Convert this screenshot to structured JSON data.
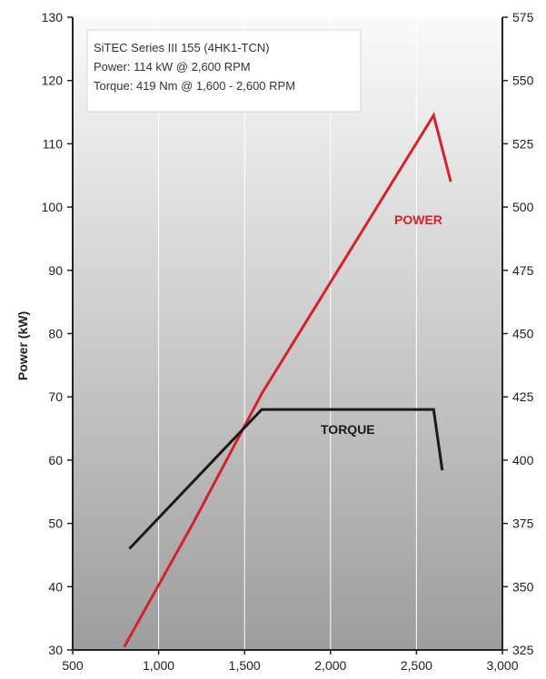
{
  "chart_data": {
    "type": "line",
    "title": "",
    "xlabel": "",
    "ylabel": "Power (kW)",
    "y2label": "",
    "xlim": [
      500,
      3000
    ],
    "ylim": [
      30,
      130
    ],
    "y2lim": [
      325,
      575
    ],
    "x_ticks": [
      "500",
      "1,000",
      "1,500",
      "2,000",
      "2,500",
      "3,000"
    ],
    "y_ticks": [
      "30",
      "40",
      "50",
      "60",
      "70",
      "80",
      "90",
      "100",
      "110",
      "120",
      "130"
    ],
    "y2_ticks": [
      "325",
      "350",
      "375",
      "400",
      "425",
      "450",
      "475",
      "500",
      "525",
      "550",
      "575"
    ],
    "grid": "vertical",
    "info_box": {
      "lines": [
        "SiTEC Series III 155 (4HK1-TCN)",
        "Power: 114 kW @ 2,600 RPM",
        "Torque: 419 Nm @ 1,600 - 2,600 RPM"
      ]
    },
    "series": [
      {
        "name": "POWER",
        "axis": "left",
        "color": "#d9202a",
        "x": [
          800,
          1200,
          1600,
          2600,
          2700
        ],
        "y": [
          30.5,
          50,
          70.5,
          114.5,
          104
        ]
      },
      {
        "name": "TORQUE",
        "axis": "right",
        "color": "#1a1a1a",
        "x": [
          830,
          1600,
          2600,
          2650
        ],
        "y": [
          365,
          420,
          420,
          396
        ]
      }
    ],
    "colors": {
      "plot_top": "#fafafa",
      "plot_bottom": "#9d9d9d",
      "axis": "#222222"
    }
  }
}
